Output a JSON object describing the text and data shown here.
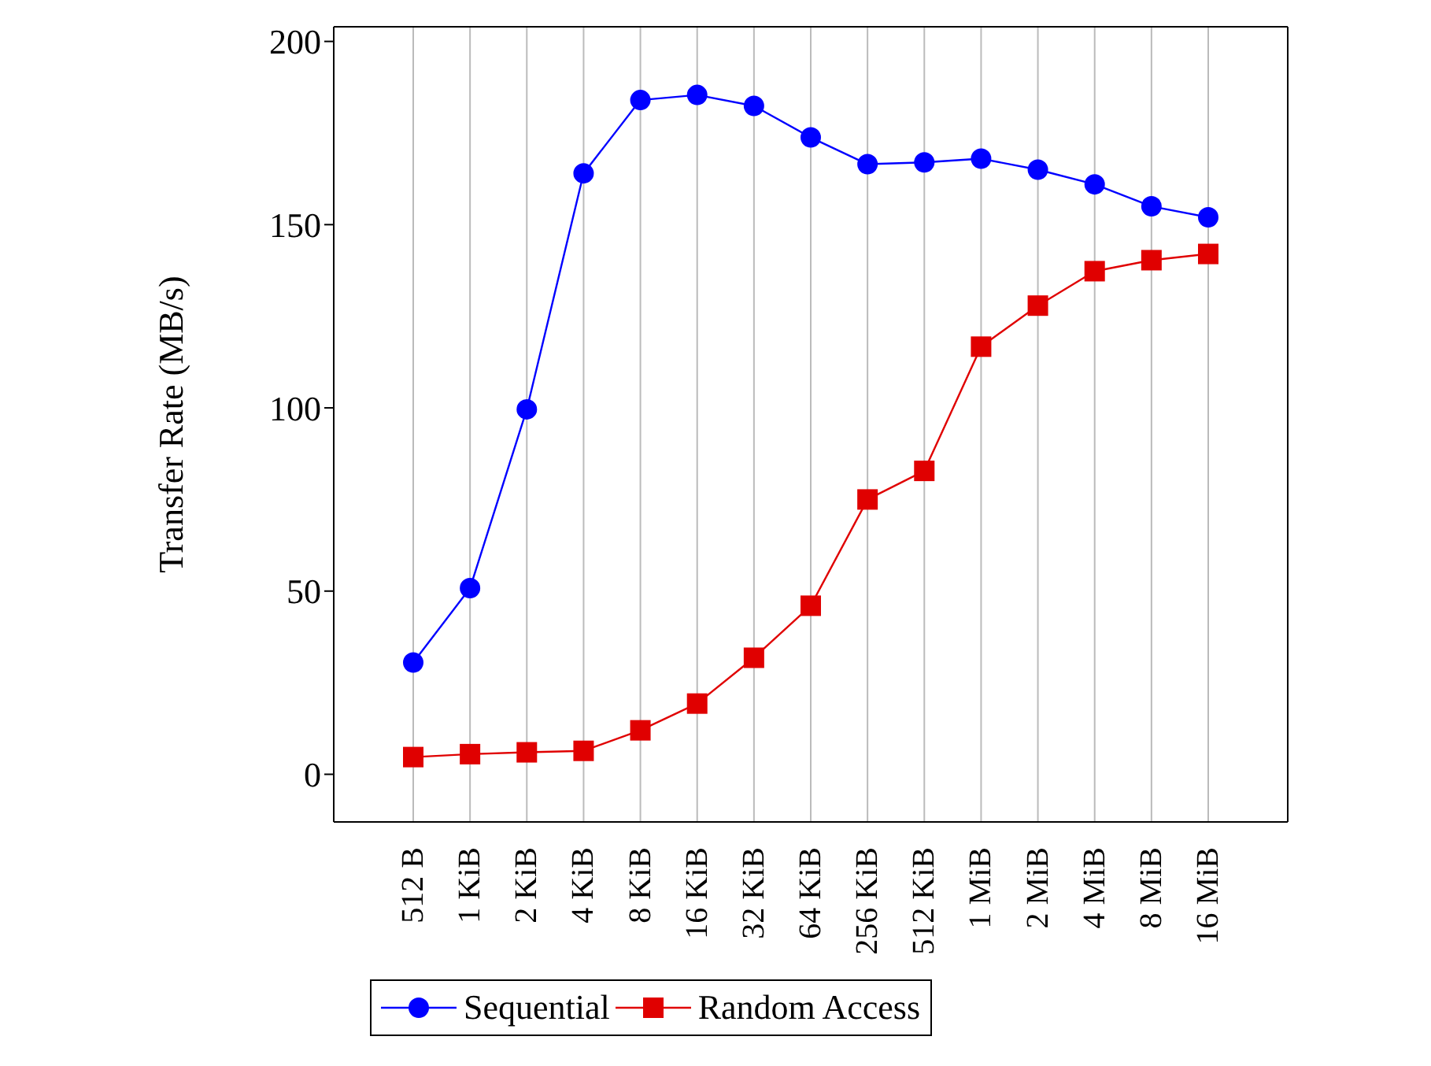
{
  "chart_data": {
    "type": "line",
    "ylabel": "Transfer Rate (MB/s)",
    "categories": [
      "512 B",
      "1 KiB",
      "2 KiB",
      "4 KiB",
      "8 KiB",
      "16 KiB",
      "32 KiB",
      "64 KiB",
      "256 KiB",
      "512 KiB",
      "1 MiB",
      "2 MiB",
      "4 MiB",
      "8 MiB",
      "16 MiB"
    ],
    "series": [
      {
        "name": "Sequential",
        "color": "#0000ff",
        "marker": "circle",
        "values": [
          30.5,
          50.8,
          99.6,
          164,
          184,
          185.4,
          182.4,
          173.8,
          166.5,
          167,
          168,
          165,
          161,
          155,
          152
        ]
      },
      {
        "name": "Random Access",
        "color": "#e00000",
        "marker": "square",
        "values": [
          4.7,
          5.5,
          6,
          6.4,
          12,
          19.3,
          31.8,
          46,
          75,
          82.8,
          116.7,
          127.9,
          137.3,
          140.3,
          142
        ]
      }
    ],
    "ylim": [
      -13,
      204
    ],
    "yticks": [
      0,
      50,
      100,
      150,
      200
    ],
    "grid": "x",
    "legend": "bottom",
    "line_style": "solid"
  }
}
